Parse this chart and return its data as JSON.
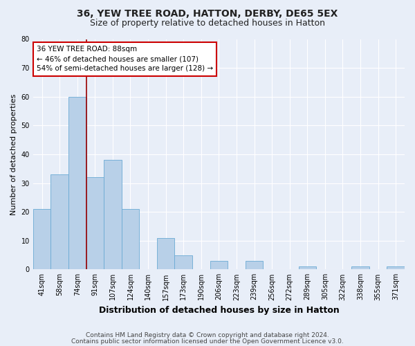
{
  "title": "36, YEW TREE ROAD, HATTON, DERBY, DE65 5EX",
  "subtitle": "Size of property relative to detached houses in Hatton",
  "xlabel": "Distribution of detached houses by size in Hatton",
  "ylabel": "Number of detached properties",
  "bar_labels": [
    "41sqm",
    "58sqm",
    "74sqm",
    "91sqm",
    "107sqm",
    "124sqm",
    "140sqm",
    "157sqm",
    "173sqm",
    "190sqm",
    "206sqm",
    "223sqm",
    "239sqm",
    "256sqm",
    "272sqm",
    "289sqm",
    "305sqm",
    "322sqm",
    "338sqm",
    "355sqm",
    "371sqm"
  ],
  "bar_values": [
    21,
    33,
    60,
    32,
    38,
    21,
    0,
    11,
    5,
    0,
    3,
    0,
    3,
    0,
    0,
    1,
    0,
    0,
    1,
    0,
    1
  ],
  "bar_color": "#b8d0e8",
  "bar_edge_color": "#6aaad4",
  "vline_x_index": 2,
  "vline_color": "#990000",
  "annotation_line1": "36 YEW TREE ROAD: 88sqm",
  "annotation_line2": "← 46% of detached houses are smaller (107)",
  "annotation_line3": "54% of semi-detached houses are larger (128) →",
  "annotation_box_facecolor": "#ffffff",
  "annotation_box_edgecolor": "#cc0000",
  "ylim": [
    0,
    80
  ],
  "yticks": [
    0,
    10,
    20,
    30,
    40,
    50,
    60,
    70,
    80
  ],
  "background_color": "#e8eef8",
  "plot_bg_color": "#e8eef8",
  "grid_color": "#ffffff",
  "footer_line1": "Contains HM Land Registry data © Crown copyright and database right 2024.",
  "footer_line2": "Contains public sector information licensed under the Open Government Licence v3.0.",
  "title_fontsize": 10,
  "subtitle_fontsize": 9,
  "xlabel_fontsize": 9,
  "ylabel_fontsize": 8,
  "tick_fontsize": 7,
  "annotation_fontsize": 7.5,
  "footer_fontsize": 6.5
}
